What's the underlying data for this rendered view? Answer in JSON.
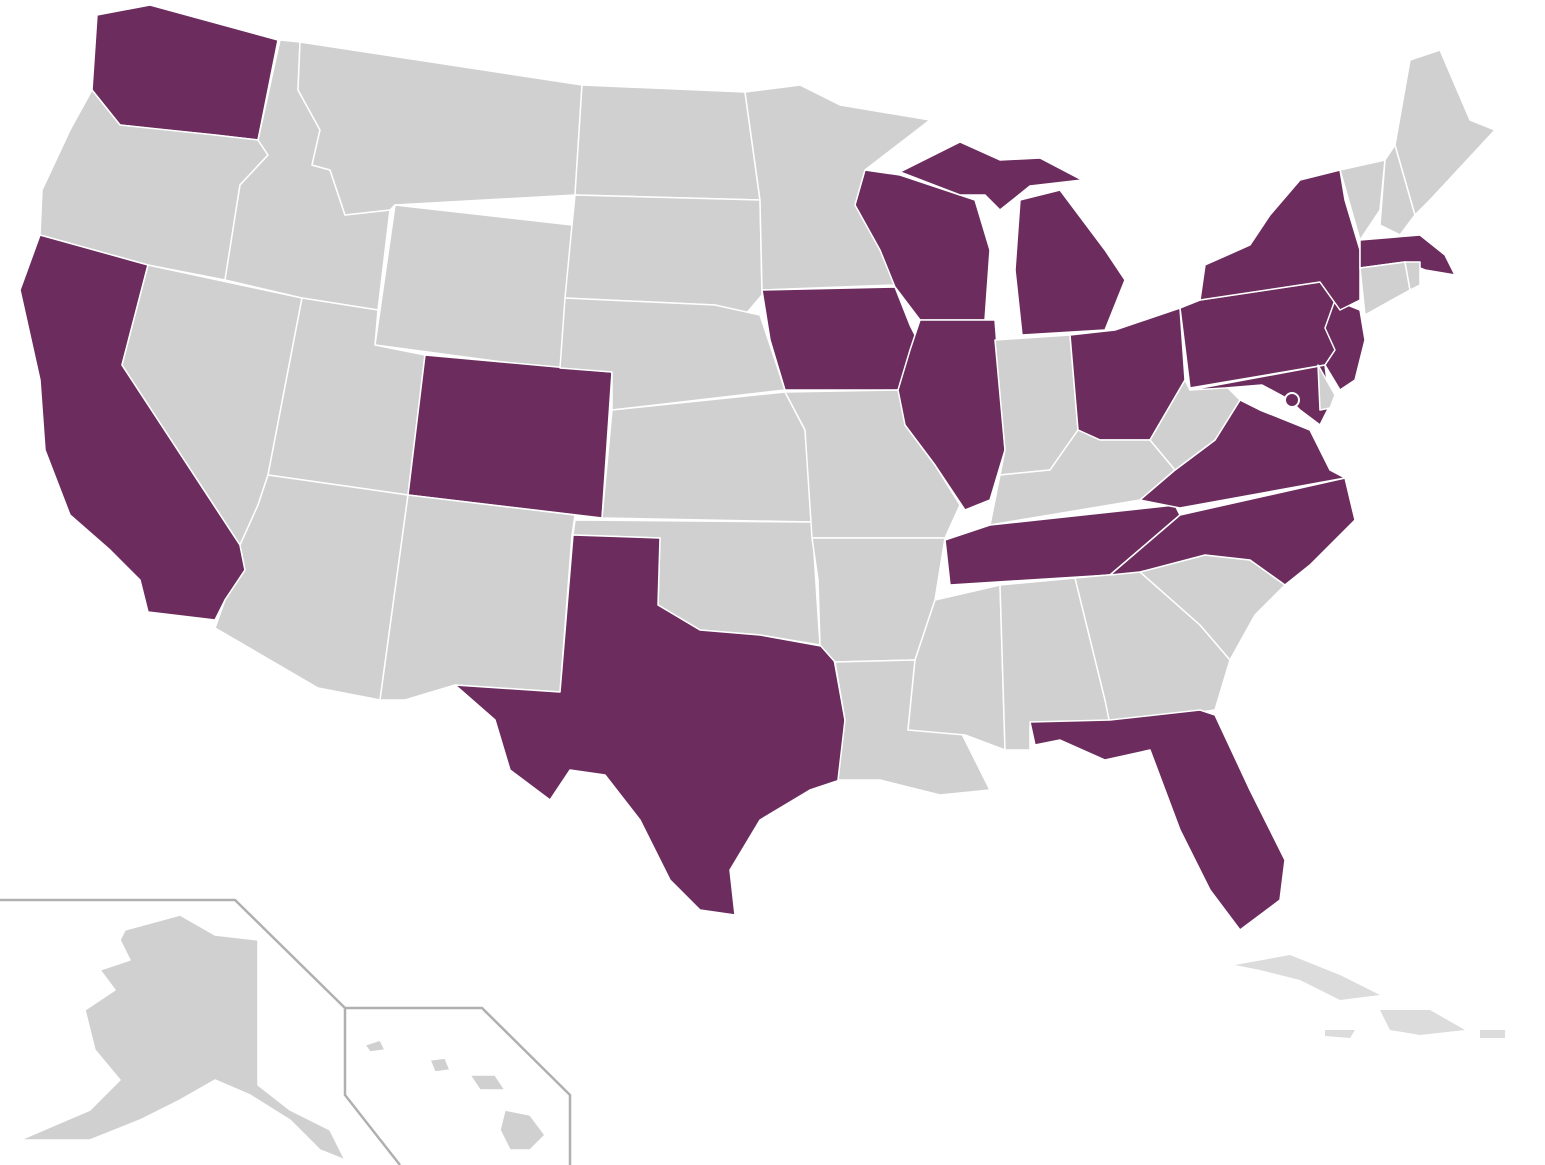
{
  "colors": {
    "highlighted": "#6c2d5e",
    "default": "#d0d0d0",
    "border": "#ffffff",
    "inset_frame": "#b0b0b0",
    "background": "#ffffff"
  },
  "state_status": {
    "WA": "highlighted",
    "OR": "default",
    "CA": "highlighted",
    "NV": "default",
    "ID": "default",
    "MT": "default",
    "WY": "default",
    "UT": "default",
    "CO": "highlighted",
    "AZ": "default",
    "NM": "default",
    "ND": "default",
    "SD": "default",
    "NE": "default",
    "KS": "default",
    "OK": "default",
    "TX": "highlighted",
    "MN": "default",
    "IA": "highlighted",
    "MO": "default",
    "AR": "default",
    "LA": "default",
    "WI": "highlighted",
    "IL": "highlighted",
    "MI": "highlighted",
    "IN": "default",
    "OH": "highlighted",
    "KY": "default",
    "TN": "highlighted",
    "MS": "default",
    "AL": "default",
    "GA": "default",
    "FL": "highlighted",
    "SC": "default",
    "NC": "highlighted",
    "VA": "highlighted",
    "WV": "default",
    "PA": "highlighted",
    "MD": "highlighted",
    "DE": "default",
    "NJ": "highlighted",
    "NY": "highlighted",
    "VT": "default",
    "NH": "default",
    "ME": "default",
    "MA": "highlighted",
    "CT": "default",
    "RI": "default",
    "DC": "highlighted",
    "AK": "default",
    "HI": "default"
  }
}
